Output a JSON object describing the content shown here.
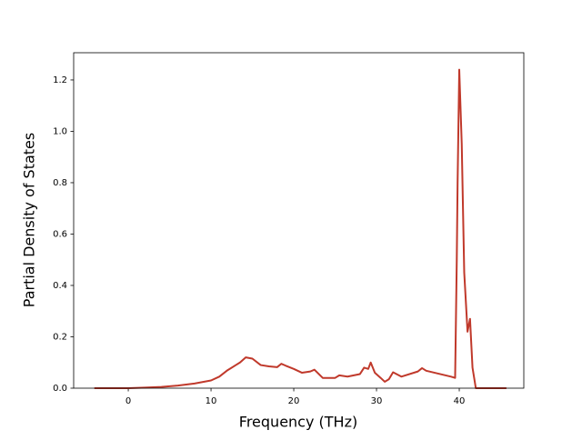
{
  "chart_data": {
    "type": "line",
    "x_label": "Frequency (THz)",
    "y_label": "Partial Density of States",
    "x": [
      -4.1,
      0,
      2,
      4,
      6,
      8,
      10,
      11,
      12,
      13,
      13.5,
      14.2,
      15,
      16,
      17,
      18,
      18.5,
      19,
      20,
      21,
      22,
      22.5,
      23.5,
      25,
      25.5,
      26.5,
      28,
      28.5,
      29,
      29.3,
      29.8,
      30.5,
      31,
      31.5,
      32,
      33,
      35,
      35.5,
      36,
      39,
      39.5,
      39.7,
      39.8,
      40,
      40.3,
      40.6,
      41,
      41.3,
      41.6,
      42,
      45.7
    ],
    "series": [
      {
        "color": "#c0392b",
        "values": [
          0,
          0,
          0.002,
          0.005,
          0.01,
          0.018,
          0.03,
          0.045,
          0.07,
          0.09,
          0.1,
          0.12,
          0.115,
          0.09,
          0.085,
          0.082,
          0.095,
          0.088,
          0.075,
          0.06,
          0.065,
          0.072,
          0.04,
          0.04,
          0.05,
          0.045,
          0.055,
          0.08,
          0.075,
          0.1,
          0.06,
          0.04,
          0.025,
          0.035,
          0.062,
          0.045,
          0.065,
          0.078,
          0.068,
          0.045,
          0.04,
          0.5,
          0.8,
          1.24,
          0.95,
          0.45,
          0.22,
          0.27,
          0.08,
          0,
          0
        ]
      }
    ],
    "xlim": [
      -6.6,
      47.8
    ],
    "ylim": [
      0,
      1.306
    ],
    "xticks": [
      0,
      10,
      20,
      30,
      40
    ],
    "yticks": [
      {
        "value": 0,
        "label": "0.0"
      },
      0.2,
      0.4,
      0.6,
      0.8,
      {
        "value": 1,
        "label": "1.0"
      },
      1.2
    ]
  }
}
